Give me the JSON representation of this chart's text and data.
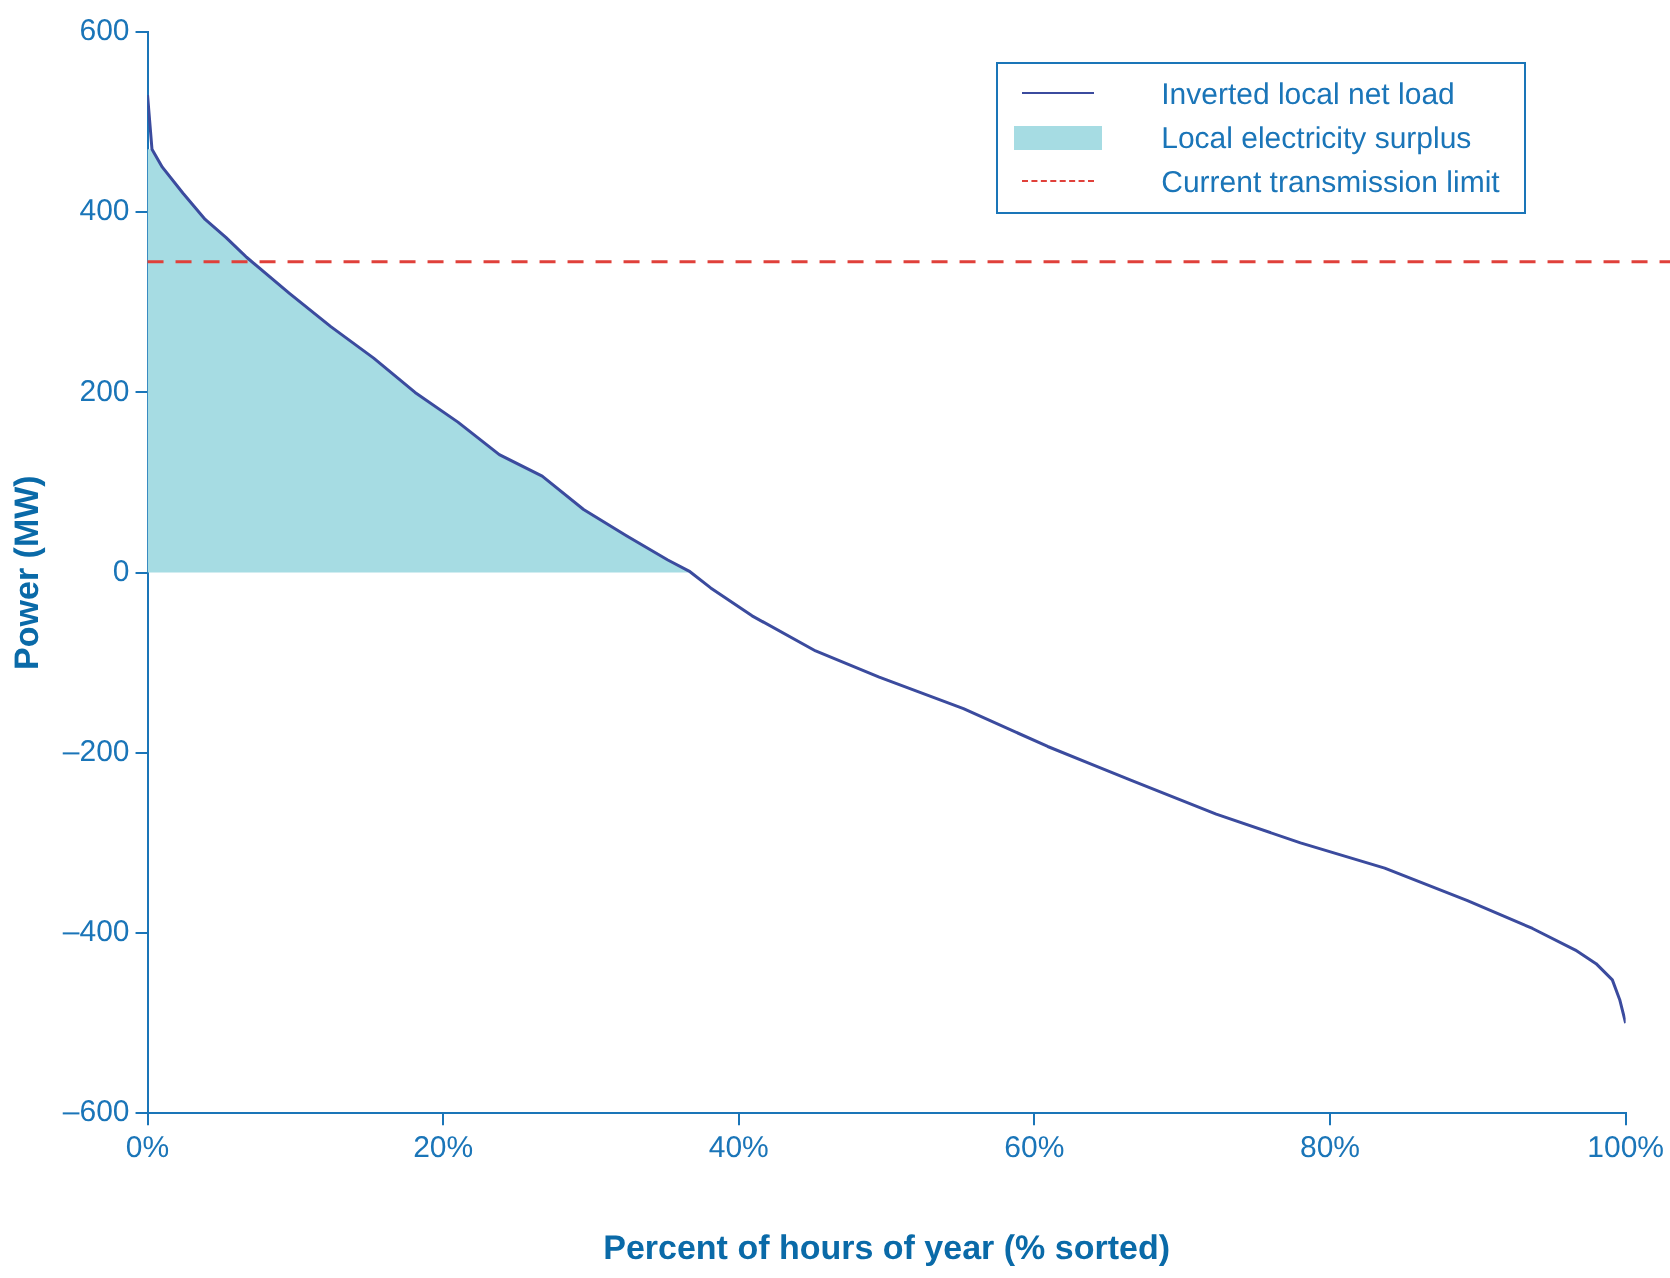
{
  "chart_data": {
    "type": "line",
    "xlabel": "Percent of hours of year (% sorted)",
    "ylabel": "Power (MW)",
    "xlim": [
      0,
      100
    ],
    "xticks": [
      {
        "value": 0,
        "label": "0%"
      },
      {
        "value": 20,
        "label": "20%"
      },
      {
        "value": 40,
        "label": "40%"
      },
      {
        "value": 60,
        "label": "60%"
      },
      {
        "value": 80,
        "label": "80%"
      },
      {
        "value": 100,
        "label": "100%"
      }
    ],
    "ylim": [
      -600,
      600
    ],
    "yticks": [
      {
        "value": -600,
        "label": "–600"
      },
      {
        "value": -400,
        "label": "–400"
      },
      {
        "value": -200,
        "label": "–200"
      },
      0,
      200,
      400,
      600
    ],
    "grid": false,
    "legend": "top right",
    "marker": "none",
    "series": [
      {
        "name": "Inverted local net load",
        "color": "#3b4b9e",
        "x": [
          0,
          0.3,
          1,
          2.4,
          3.9,
          5.3,
          6.7,
          9.6,
          12.4,
          15.3,
          18.1,
          21,
          23.8,
          26.7,
          29.5,
          32.4,
          35.2,
          36.7,
          38.1,
          40.9,
          45.2,
          49.5,
          55.2,
          60.9,
          66.6,
          72.3,
          78,
          83.7,
          89.3,
          93.7,
          96.6,
          98,
          99.1,
          99.6,
          100
        ],
        "values": [
          530,
          470,
          450,
          421,
          392,
          372,
          350,
          310,
          273,
          238,
          200,
          167,
          131,
          107,
          70,
          41,
          14,
          1,
          -17,
          -48,
          -87,
          -116,
          -151,
          -193,
          -231,
          -268,
          -300,
          -328,
          -364,
          -395,
          -419,
          -434,
          -452,
          -474,
          -500
        ]
      },
      {
        "name": "Local electricity surplus",
        "type": "area",
        "color": "#a6dce3",
        "x": [
          0,
          0.3,
          1,
          2.4,
          3.9,
          5.3,
          6.7,
          9.6,
          12.4,
          15.3,
          18.1,
          21,
          23.8,
          26.7,
          29.5,
          32.4,
          35.2,
          36.7
        ],
        "values": [
          470,
          470,
          450,
          421,
          392,
          372,
          350,
          310,
          273,
          238,
          200,
          167,
          131,
          107,
          70,
          41,
          14,
          0
        ]
      }
    ],
    "ref_lines": [
      {
        "axis": "y",
        "value": 345,
        "label": "Current transmission limit",
        "color": "#e0403a",
        "line_style": "dashed"
      }
    ]
  }
}
